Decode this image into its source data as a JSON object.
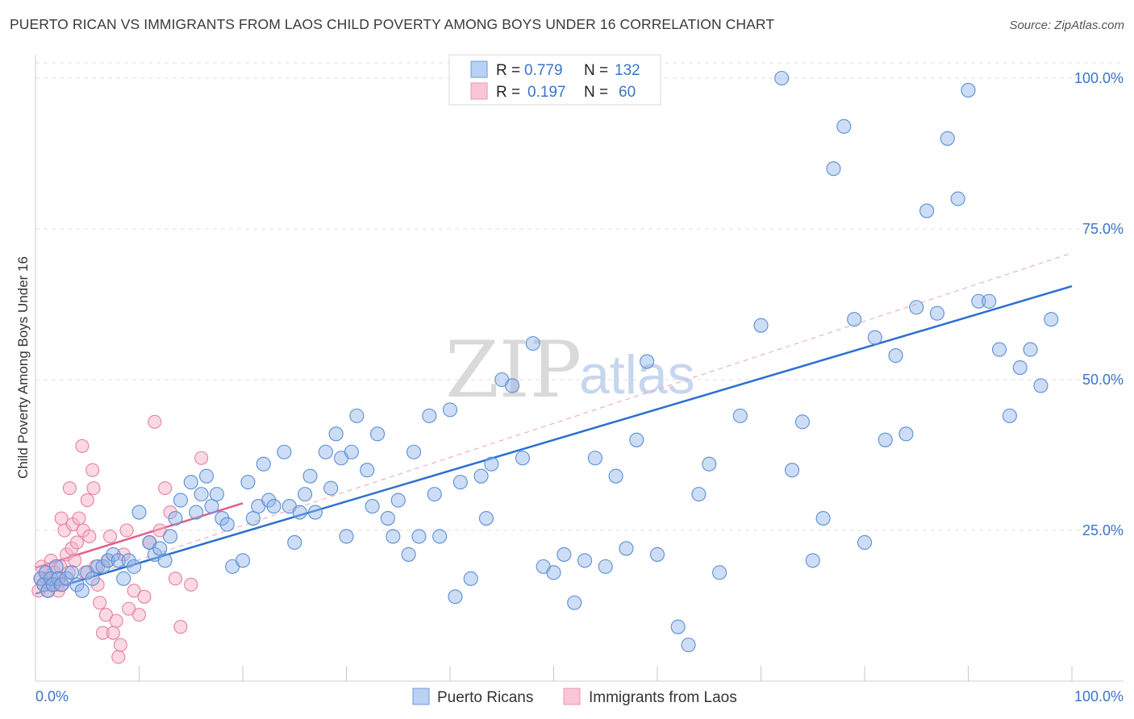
{
  "title": "PUERTO RICAN VS IMMIGRANTS FROM LAOS CHILD POVERTY AMONG BOYS UNDER 16 CORRELATION CHART",
  "source": "Source: ZipAtlas.com",
  "watermark": {
    "zip": "ZIP",
    "atlas": "atlas"
  },
  "chart_data": {
    "type": "scatter",
    "title": "PUERTO RICAN VS IMMIGRANTS FROM LAOS CHILD POVERTY AMONG BOYS UNDER 16 CORRELATION CHART",
    "xlabel": "",
    "ylabel": "Child Poverty Among Boys Under 16",
    "xlim": [
      0,
      100
    ],
    "ylim": [
      0,
      102
    ],
    "x_tick_labels": {
      "left": "0.0%",
      "right": "100.0%"
    },
    "y_ticks": [
      {
        "value": 25,
        "label": "25.0%"
      },
      {
        "value": 50,
        "label": "50.0%"
      },
      {
        "value": 75,
        "label": "75.0%"
      },
      {
        "value": 100,
        "label": "100.0%"
      }
    ],
    "legend": {
      "items": [
        {
          "r_label": "R =",
          "r_value": "0.779",
          "n_label": "N =",
          "n_value": "132"
        },
        {
          "r_label": "R =",
          "r_value": "0.197",
          "n_label": "N =",
          "n_value": "60"
        }
      ]
    },
    "series": [
      {
        "name": "Puerto Ricans",
        "color": "#8fb4e8",
        "edge": "#5b8fd6",
        "line_color": "#2d6fd0",
        "trend": {
          "x0": 0,
          "y0": 14.5,
          "x1": 100,
          "y1": 65.5
        },
        "dashed_trend": {
          "x0": 0,
          "y0": 14.5,
          "x1": 100,
          "y1": 71
        },
        "points": [
          [
            0.5,
            17
          ],
          [
            0.8,
            16
          ],
          [
            1.0,
            18
          ],
          [
            1.2,
            15
          ],
          [
            1.5,
            17
          ],
          [
            1.7,
            16
          ],
          [
            2.0,
            19
          ],
          [
            2.2,
            17
          ],
          [
            2.5,
            16
          ],
          [
            3.0,
            17
          ],
          [
            3.5,
            18
          ],
          [
            4.0,
            16
          ],
          [
            4.5,
            15
          ],
          [
            5.0,
            18
          ],
          [
            5.5,
            17
          ],
          [
            6.0,
            19
          ],
          [
            6.5,
            19
          ],
          [
            7.0,
            20
          ],
          [
            7.5,
            21
          ],
          [
            8.0,
            20
          ],
          [
            8.5,
            17
          ],
          [
            9.0,
            20
          ],
          [
            9.5,
            19
          ],
          [
            10.0,
            28
          ],
          [
            11.0,
            23
          ],
          [
            11.5,
            21
          ],
          [
            12.0,
            22
          ],
          [
            12.5,
            20
          ],
          [
            13.0,
            24
          ],
          [
            13.5,
            27
          ],
          [
            14.0,
            30
          ],
          [
            15.0,
            33
          ],
          [
            15.5,
            28
          ],
          [
            16.0,
            31
          ],
          [
            16.5,
            34
          ],
          [
            17.0,
            29
          ],
          [
            17.5,
            31
          ],
          [
            18.0,
            27
          ],
          [
            18.5,
            26
          ],
          [
            19.0,
            19
          ],
          [
            20.0,
            20
          ],
          [
            20.5,
            33
          ],
          [
            21.0,
            27
          ],
          [
            21.5,
            29
          ],
          [
            22.0,
            36
          ],
          [
            22.5,
            30
          ],
          [
            23.0,
            29
          ],
          [
            24.0,
            38
          ],
          [
            24.5,
            29
          ],
          [
            25.0,
            23
          ],
          [
            25.5,
            28
          ],
          [
            26.0,
            31
          ],
          [
            26.5,
            34
          ],
          [
            27.0,
            28
          ],
          [
            28.0,
            38
          ],
          [
            28.5,
            32
          ],
          [
            29.0,
            41
          ],
          [
            29.5,
            37
          ],
          [
            30.0,
            24
          ],
          [
            30.5,
            38
          ],
          [
            31.0,
            44
          ],
          [
            32.0,
            35
          ],
          [
            32.5,
            29
          ],
          [
            33.0,
            41
          ],
          [
            34.0,
            27
          ],
          [
            34.5,
            24
          ],
          [
            35.0,
            30
          ],
          [
            36.0,
            21
          ],
          [
            36.5,
            38
          ],
          [
            37.0,
            24
          ],
          [
            38.0,
            44
          ],
          [
            38.5,
            31
          ],
          [
            39.0,
            24
          ],
          [
            40.0,
            45
          ],
          [
            40.5,
            14
          ],
          [
            41.0,
            33
          ],
          [
            42.0,
            17
          ],
          [
            43.0,
            34
          ],
          [
            43.5,
            27
          ],
          [
            44.0,
            36
          ],
          [
            45.0,
            50
          ],
          [
            46.0,
            49
          ],
          [
            47.0,
            37
          ],
          [
            48.0,
            56
          ],
          [
            49.0,
            19
          ],
          [
            50.0,
            18
          ],
          [
            51.0,
            21
          ],
          [
            52.0,
            13
          ],
          [
            53.0,
            20
          ],
          [
            54.0,
            37
          ],
          [
            55.0,
            19
          ],
          [
            56.0,
            34
          ],
          [
            57.0,
            22
          ],
          [
            58.0,
            40
          ],
          [
            59.0,
            53
          ],
          [
            60.0,
            21
          ],
          [
            62.0,
            9
          ],
          [
            63.0,
            6
          ],
          [
            64.0,
            31
          ],
          [
            65.0,
            36
          ],
          [
            66.0,
            18
          ],
          [
            68.0,
            44
          ],
          [
            70.0,
            59
          ],
          [
            72.0,
            100
          ],
          [
            73.0,
            35
          ],
          [
            74.0,
            43
          ],
          [
            75.0,
            20
          ],
          [
            76.0,
            27
          ],
          [
            77.0,
            85
          ],
          [
            78.0,
            92
          ],
          [
            79.0,
            60
          ],
          [
            80.0,
            23
          ],
          [
            81.0,
            57
          ],
          [
            82.0,
            40
          ],
          [
            83.0,
            54
          ],
          [
            84.0,
            41
          ],
          [
            85.0,
            62
          ],
          [
            86.0,
            78
          ],
          [
            87.0,
            61
          ],
          [
            88.0,
            90
          ],
          [
            89.0,
            80
          ],
          [
            90.0,
            98
          ],
          [
            91.0,
            63
          ],
          [
            92.0,
            63
          ],
          [
            93.0,
            55
          ],
          [
            94.0,
            44
          ],
          [
            95.0,
            52
          ],
          [
            96.0,
            55
          ],
          [
            97.0,
            49
          ],
          [
            98.0,
            60
          ]
        ]
      },
      {
        "name": "Immigrants from Laos",
        "color": "#f5b4c8",
        "edge": "#e87fa0",
        "line_color": "#e0608a",
        "trend": {
          "x0": 0,
          "y0": 18.8,
          "x1": 20,
          "y1": 29.5
        },
        "points": [
          [
            0.3,
            15
          ],
          [
            0.5,
            17
          ],
          [
            0.6,
            19
          ],
          [
            0.8,
            16
          ],
          [
            1.0,
            18
          ],
          [
            1.2,
            15
          ],
          [
            1.3,
            17
          ],
          [
            1.5,
            20
          ],
          [
            1.6,
            16
          ],
          [
            1.8,
            18
          ],
          [
            2.0,
            17
          ],
          [
            2.1,
            16
          ],
          [
            2.2,
            15
          ],
          [
            2.4,
            19
          ],
          [
            2.5,
            27
          ],
          [
            2.6,
            16
          ],
          [
            2.8,
            25
          ],
          [
            3.0,
            21
          ],
          [
            3.2,
            18
          ],
          [
            3.3,
            32
          ],
          [
            3.5,
            22
          ],
          [
            3.6,
            26
          ],
          [
            3.8,
            20
          ],
          [
            4.0,
            23
          ],
          [
            4.2,
            27
          ],
          [
            4.5,
            39
          ],
          [
            4.6,
            25
          ],
          [
            4.8,
            18
          ],
          [
            5.0,
            30
          ],
          [
            5.2,
            24
          ],
          [
            5.5,
            35
          ],
          [
            5.6,
            32
          ],
          [
            5.8,
            19
          ],
          [
            6.0,
            16
          ],
          [
            6.2,
            13
          ],
          [
            6.5,
            8
          ],
          [
            6.8,
            11
          ],
          [
            7.0,
            20
          ],
          [
            7.2,
            24
          ],
          [
            7.5,
            8
          ],
          [
            7.8,
            10
          ],
          [
            8.0,
            4
          ],
          [
            8.2,
            6
          ],
          [
            8.5,
            21
          ],
          [
            8.8,
            25
          ],
          [
            9.0,
            12
          ],
          [
            9.5,
            15
          ],
          [
            10.0,
            11
          ],
          [
            10.5,
            14
          ],
          [
            11.0,
            23
          ],
          [
            11.5,
            43
          ],
          [
            12.0,
            25
          ],
          [
            12.5,
            32
          ],
          [
            13.0,
            28
          ],
          [
            13.5,
            17
          ],
          [
            14.0,
            9
          ],
          [
            15.0,
            16
          ],
          [
            16.0,
            37
          ],
          [
            1.1,
            17
          ],
          [
            1.4,
            16
          ]
        ]
      }
    ]
  },
  "bottom_legend": [
    "Puerto Ricans",
    "Immigrants from Laos"
  ]
}
